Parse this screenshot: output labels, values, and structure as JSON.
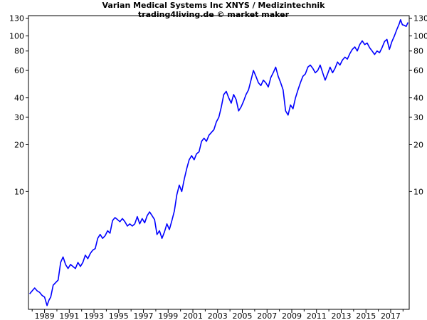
{
  "chart_data": {
    "type": "line",
    "title": "Varian Medical Systems Inc XNYS / Medizintechnik",
    "subtitle": "trading4living.de © market maker",
    "xlabel": "",
    "ylabel": "",
    "y_scale": "log",
    "ylim": [
      1.75,
      135
    ],
    "xlim": [
      1987.7,
      2018.5
    ],
    "grid": false,
    "legend": "none",
    "line_color": "#0000ff",
    "x_ticks": [
      1989,
      1991,
      1993,
      1995,
      1997,
      1999,
      2001,
      2003,
      2005,
      2007,
      2009,
      2011,
      2013,
      2015,
      2017
    ],
    "y_ticks": [
      10,
      20,
      30,
      40,
      60,
      80,
      100,
      130
    ],
    "series": [
      {
        "values": [
          [
            1987.8,
            2.2
          ],
          [
            1988.0,
            2.3
          ],
          [
            1988.2,
            2.4
          ],
          [
            1988.4,
            2.3
          ],
          [
            1988.6,
            2.25
          ],
          [
            1988.8,
            2.15
          ],
          [
            1989.0,
            2.1
          ],
          [
            1989.2,
            1.85
          ],
          [
            1989.35,
            2.0
          ],
          [
            1989.5,
            2.1
          ],
          [
            1989.7,
            2.5
          ],
          [
            1989.9,
            2.6
          ],
          [
            1990.1,
            2.7
          ],
          [
            1990.3,
            3.5
          ],
          [
            1990.5,
            3.8
          ],
          [
            1990.7,
            3.4
          ],
          [
            1990.9,
            3.2
          ],
          [
            1991.1,
            3.4
          ],
          [
            1991.3,
            3.3
          ],
          [
            1991.5,
            3.2
          ],
          [
            1991.7,
            3.5
          ],
          [
            1991.9,
            3.3
          ],
          [
            1992.1,
            3.5
          ],
          [
            1992.3,
            3.9
          ],
          [
            1992.5,
            3.7
          ],
          [
            1992.7,
            4.0
          ],
          [
            1992.9,
            4.2
          ],
          [
            1993.1,
            4.3
          ],
          [
            1993.3,
            5.0
          ],
          [
            1993.5,
            5.3
          ],
          [
            1993.7,
            5.0
          ],
          [
            1993.9,
            5.2
          ],
          [
            1994.1,
            5.6
          ],
          [
            1994.3,
            5.4
          ],
          [
            1994.5,
            6.5
          ],
          [
            1994.7,
            6.8
          ],
          [
            1994.9,
            6.6
          ],
          [
            1995.1,
            6.4
          ],
          [
            1995.3,
            6.7
          ],
          [
            1995.5,
            6.4
          ],
          [
            1995.7,
            6.0
          ],
          [
            1995.9,
            6.2
          ],
          [
            1996.1,
            6.0
          ],
          [
            1996.3,
            6.2
          ],
          [
            1996.5,
            6.9
          ],
          [
            1996.7,
            6.2
          ],
          [
            1996.9,
            6.7
          ],
          [
            1997.1,
            6.3
          ],
          [
            1997.3,
            7.0
          ],
          [
            1997.5,
            7.4
          ],
          [
            1997.7,
            7.0
          ],
          [
            1997.9,
            6.6
          ],
          [
            1998.1,
            5.3
          ],
          [
            1998.3,
            5.6
          ],
          [
            1998.5,
            5.0
          ],
          [
            1998.7,
            5.5
          ],
          [
            1998.9,
            6.2
          ],
          [
            1999.1,
            5.7
          ],
          [
            1999.3,
            6.5
          ],
          [
            1999.5,
            7.5
          ],
          [
            1999.7,
            9.5
          ],
          [
            1999.9,
            11.0
          ],
          [
            2000.1,
            10.0
          ],
          [
            2000.3,
            12.0
          ],
          [
            2000.5,
            14.0
          ],
          [
            2000.7,
            16.0
          ],
          [
            2000.9,
            17.0
          ],
          [
            2001.1,
            16.0
          ],
          [
            2001.3,
            17.5
          ],
          [
            2001.5,
            18.0
          ],
          [
            2001.7,
            21.0
          ],
          [
            2001.9,
            22.0
          ],
          [
            2002.1,
            21.0
          ],
          [
            2002.3,
            23.0
          ],
          [
            2002.5,
            24.0
          ],
          [
            2002.7,
            25.0
          ],
          [
            2002.9,
            28.0
          ],
          [
            2003.1,
            30.0
          ],
          [
            2003.3,
            35.0
          ],
          [
            2003.5,
            42.0
          ],
          [
            2003.7,
            44.0
          ],
          [
            2003.9,
            40.0
          ],
          [
            2004.1,
            37.0
          ],
          [
            2004.3,
            42.0
          ],
          [
            2004.5,
            39.0
          ],
          [
            2004.7,
            33.0
          ],
          [
            2004.9,
            35.0
          ],
          [
            2005.1,
            38.0
          ],
          [
            2005.3,
            42.0
          ],
          [
            2005.5,
            45.0
          ],
          [
            2005.7,
            52.0
          ],
          [
            2005.9,
            60.0
          ],
          [
            2006.1,
            55.0
          ],
          [
            2006.3,
            50.0
          ],
          [
            2006.5,
            48.0
          ],
          [
            2006.7,
            52.0
          ],
          [
            2006.9,
            50.0
          ],
          [
            2007.1,
            47.0
          ],
          [
            2007.3,
            54.0
          ],
          [
            2007.5,
            58.0
          ],
          [
            2007.7,
            63.0
          ],
          [
            2007.9,
            55.0
          ],
          [
            2008.1,
            50.0
          ],
          [
            2008.3,
            45.0
          ],
          [
            2008.5,
            33.0
          ],
          [
            2008.7,
            31.0
          ],
          [
            2008.9,
            36.0
          ],
          [
            2009.1,
            34.0
          ],
          [
            2009.3,
            40.0
          ],
          [
            2009.5,
            45.0
          ],
          [
            2009.7,
            50.0
          ],
          [
            2009.9,
            55.0
          ],
          [
            2010.1,
            57.0
          ],
          [
            2010.3,
            63.0
          ],
          [
            2010.5,
            65.0
          ],
          [
            2010.7,
            62.0
          ],
          [
            2010.9,
            58.0
          ],
          [
            2011.1,
            60.0
          ],
          [
            2011.3,
            65.0
          ],
          [
            2011.5,
            58.0
          ],
          [
            2011.7,
            52.0
          ],
          [
            2011.9,
            57.0
          ],
          [
            2012.1,
            63.0
          ],
          [
            2012.3,
            58.0
          ],
          [
            2012.5,
            62.0
          ],
          [
            2012.7,
            68.0
          ],
          [
            2012.9,
            65.0
          ],
          [
            2013.1,
            70.0
          ],
          [
            2013.3,
            73.0
          ],
          [
            2013.5,
            71.0
          ],
          [
            2013.7,
            77.0
          ],
          [
            2013.9,
            82.0
          ],
          [
            2014.1,
            85.0
          ],
          [
            2014.3,
            80.0
          ],
          [
            2014.5,
            88.0
          ],
          [
            2014.7,
            93.0
          ],
          [
            2014.9,
            88.0
          ],
          [
            2015.1,
            90.0
          ],
          [
            2015.3,
            84.0
          ],
          [
            2015.5,
            80.0
          ],
          [
            2015.7,
            76.0
          ],
          [
            2015.9,
            80.0
          ],
          [
            2016.1,
            78.0
          ],
          [
            2016.3,
            84.0
          ],
          [
            2016.5,
            92.0
          ],
          [
            2016.7,
            95.0
          ],
          [
            2016.9,
            82.0
          ],
          [
            2017.1,
            92.0
          ],
          [
            2017.3,
            100.0
          ],
          [
            2017.5,
            110.0
          ],
          [
            2017.7,
            120.0
          ],
          [
            2017.8,
            127.0
          ],
          [
            2017.95,
            118.0
          ],
          [
            2018.1,
            117.0
          ],
          [
            2018.25,
            115.0
          ],
          [
            2018.4,
            122.0
          ]
        ]
      }
    ]
  }
}
